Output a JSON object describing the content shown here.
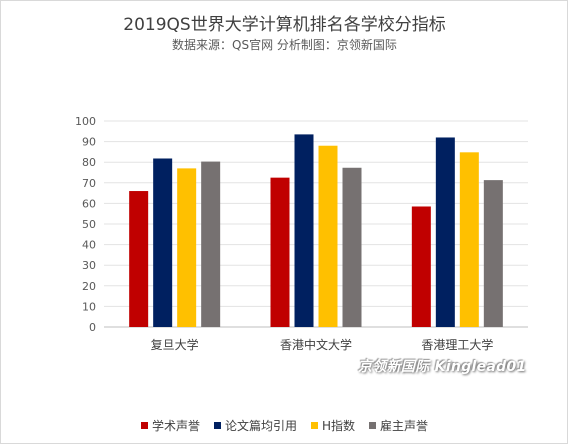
{
  "chart_data": {
    "type": "bar",
    "title": "2019QS世界大学计算机排名各学校分指标",
    "subtitle": "数据来源：QS官网  分析制图：京领新国际",
    "categories": [
      "复旦大学",
      "香港中文大学",
      "香港理工大学"
    ],
    "series": [
      {
        "name": "学术声誉",
        "color": "#c00000",
        "values": [
          66,
          72.5,
          58.5
        ]
      },
      {
        "name": "论文篇均引用",
        "color": "#002060",
        "values": [
          81.8,
          93.5,
          92
        ]
      },
      {
        "name": "H指数",
        "color": "#ffc000",
        "values": [
          77,
          88,
          84.8
        ]
      },
      {
        "name": "雇主声誉",
        "color": "#767171",
        "values": [
          80.3,
          77.3,
          71.3
        ]
      }
    ],
    "ylim": [
      0,
      100
    ],
    "yticks": [
      "0",
      "10",
      "20",
      "30",
      "40",
      "50",
      "60",
      "70",
      "80",
      "90",
      "100"
    ],
    "grid": true,
    "legend_position": "bottom",
    "watermark": "京领新国际 Kinglead01"
  }
}
